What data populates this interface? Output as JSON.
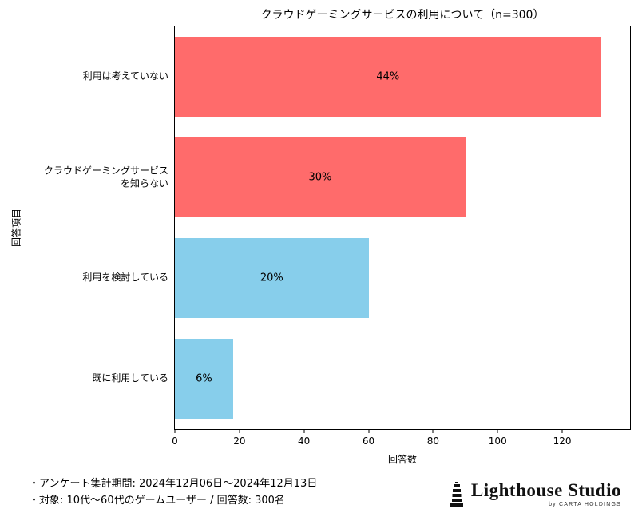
{
  "chart_data": {
    "type": "bar",
    "orientation": "horizontal",
    "title": "クラウドゲーミングサービスの利用について（n=300）",
    "xlabel": "回答数",
    "ylabel": "回答項目",
    "categories": [
      "利用は考えていない",
      "クラウドゲーミングサービス\nを知らない",
      "利用を検討している",
      "既に利用している"
    ],
    "values": [
      132,
      90,
      60,
      18
    ],
    "percent_labels": [
      "44%",
      "30%",
      "20%",
      "6%"
    ],
    "colors": [
      "#ff6b6b",
      "#ff6b6b",
      "#87ceeb",
      "#87ceeb"
    ],
    "xlim": [
      0,
      141
    ],
    "xticks": [
      0,
      20,
      40,
      60,
      80,
      100,
      120
    ],
    "grid": false,
    "legend": "none"
  },
  "footer": {
    "notes": [
      "・アンケート集計期間: 2024年12月06日～2024年12月13日",
      "・対象: 10代～60代のゲームユーザー / 回答数: 300名"
    ],
    "logo_text": "Lighthouse Studio",
    "logo_subtext": "by CARTA HOLDINGS"
  }
}
